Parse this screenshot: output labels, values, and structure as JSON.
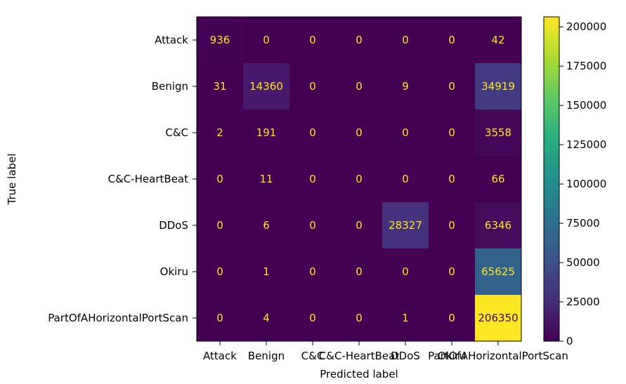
{
  "chart_data": {
    "type": "heatmap",
    "title": "",
    "xlabel": "Predicted label",
    "ylabel": "True label",
    "x_categories": [
      "Attack",
      "Benign",
      "C&C",
      "C&C-HeartBeat",
      "DDoS",
      "Okiru",
      "PartOfAHorizontalPortScan"
    ],
    "y_categories": [
      "Attack",
      "Benign",
      "C&C",
      "C&C-HeartBeat",
      "DDoS",
      "Okiru",
      "PartOfAHorizontalPortScan"
    ],
    "matrix": [
      [
        936,
        0,
        0,
        0,
        0,
        0,
        42
      ],
      [
        31,
        14360,
        0,
        0,
        9,
        0,
        34919
      ],
      [
        2,
        191,
        0,
        0,
        0,
        0,
        3558
      ],
      [
        0,
        11,
        0,
        0,
        0,
        0,
        66
      ],
      [
        0,
        6,
        0,
        0,
        28327,
        0,
        6346
      ],
      [
        0,
        1,
        0,
        0,
        0,
        0,
        65625
      ],
      [
        0,
        4,
        0,
        0,
        1,
        0,
        206350
      ]
    ],
    "colormap": "viridis",
    "vmin": 0,
    "vmax": 206350,
    "colorbar_ticks": [
      0,
      25000,
      50000,
      75000,
      100000,
      125000,
      150000,
      175000,
      200000
    ],
    "grid": false
  }
}
